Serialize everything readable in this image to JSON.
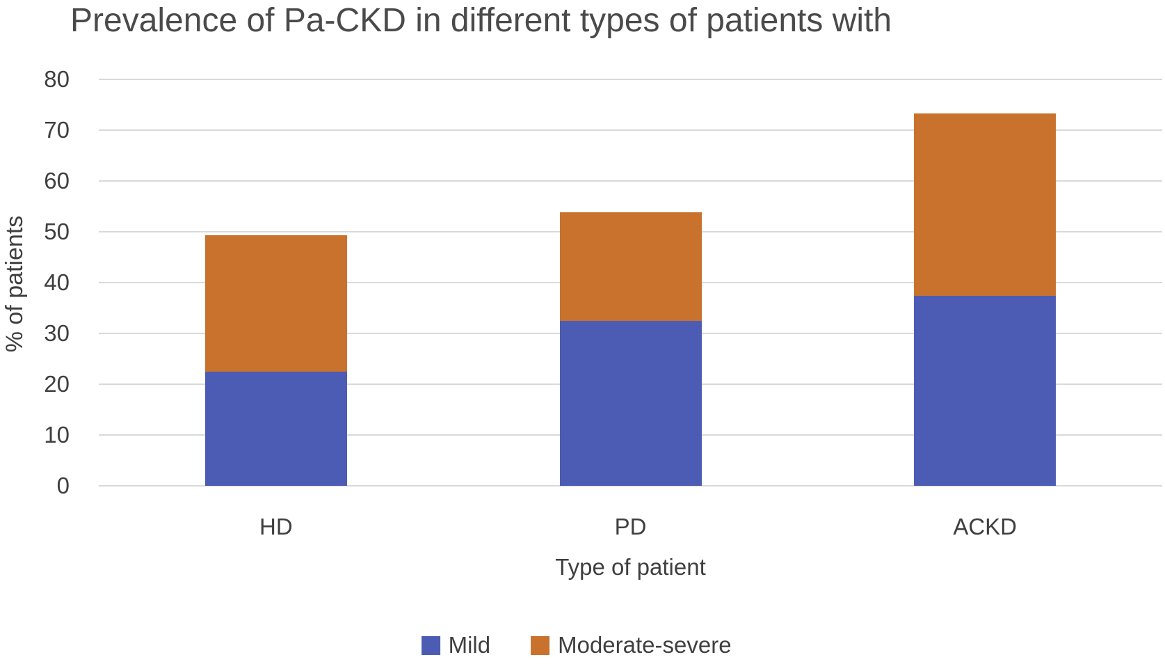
{
  "title": "Prevalence of Pa-CKD in different types of patients with",
  "colors": {
    "mild": "#4c5cb4",
    "moderate_severe": "#c8722e",
    "gridline": "#d9d9d9",
    "title_text": "#4a4a4a",
    "axis_text": "#3f3f3f",
    "background": "#ffffff"
  },
  "chart_data": {
    "type": "bar",
    "stacked": true,
    "title": "Prevalence of Pa-CKD in different types of patients with",
    "xlabel": "Type of patient",
    "ylabel": "% of patients",
    "categories": [
      "HD",
      "PD",
      "ACKD"
    ],
    "series": [
      {
        "name": "Mild",
        "color": "#4c5cb4",
        "values": [
          22.5,
          32.5,
          37.4
        ]
      },
      {
        "name": "Moderate-severe",
        "color": "#c8722e",
        "values": [
          26.8,
          21.4,
          35.9
        ]
      }
    ],
    "stack_totals": [
      49.3,
      53.9,
      73.3
    ],
    "ylim": [
      0,
      80
    ],
    "yticks": [
      0,
      10,
      20,
      30,
      40,
      50,
      60,
      70,
      80
    ],
    "grid": true,
    "legend_position": "bottom"
  }
}
